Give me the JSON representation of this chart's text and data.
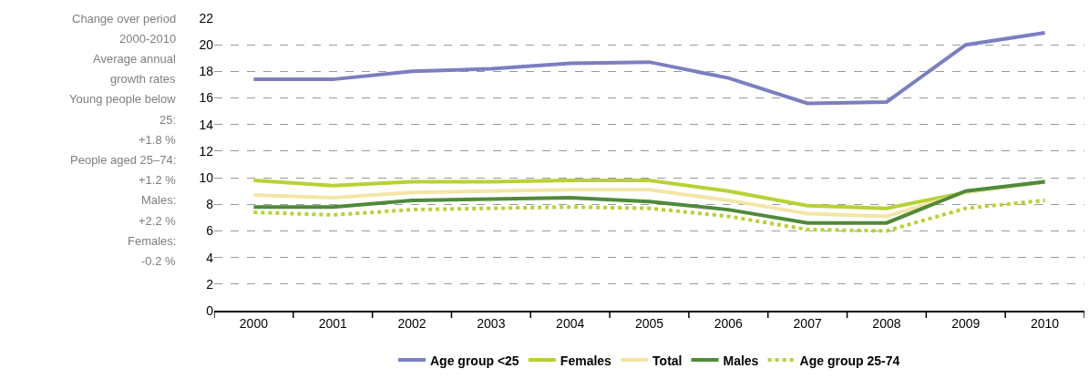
{
  "chart_data": {
    "type": "line",
    "categories": [
      "2000",
      "2001",
      "2002",
      "2003",
      "2004",
      "2005",
      "2006",
      "2007",
      "2008",
      "2009",
      "2010"
    ],
    "series": [
      {
        "name": "Age group <25",
        "color": "#7b7fc0",
        "values": [
          17.4,
          17.4,
          18.0,
          18.2,
          18.6,
          18.7,
          17.5,
          15.6,
          15.7,
          20.0,
          20.9
        ]
      },
      {
        "name": "Females",
        "color": "#b5d334",
        "values": [
          9.8,
          9.4,
          9.7,
          9.7,
          9.8,
          9.8,
          9.0,
          7.9,
          7.7,
          8.9,
          9.7
        ]
      },
      {
        "name": "Total",
        "color": "#f3e5a6",
        "values": [
          8.7,
          8.5,
          8.9,
          9.0,
          9.1,
          9.1,
          8.3,
          7.3,
          7.1,
          8.9,
          9.7
        ]
      },
      {
        "name": "Males",
        "color": "#4f8a3a",
        "values": [
          7.8,
          7.8,
          8.3,
          8.4,
          8.5,
          8.2,
          7.6,
          6.6,
          6.6,
          9.0,
          9.7
        ]
      },
      {
        "name": "Age group 25-74",
        "color": "#b5d334",
        "line_style": "dotted",
        "values": [
          7.4,
          7.2,
          7.6,
          7.7,
          7.8,
          7.7,
          7.1,
          6.1,
          6.0,
          7.7,
          8.3
        ]
      }
    ],
    "ylim": [
      0,
      22
    ],
    "yticks": [
      0,
      2,
      4,
      6,
      8,
      10,
      12,
      14,
      16,
      18,
      20,
      22
    ],
    "grid": "y",
    "legend": "bottom",
    "marker": "none",
    "line_style": "solid",
    "annotations": [
      "Change over period",
      "2000-2010",
      "Average annual",
      "growth rates",
      "Young people below",
      "25:",
      "+1.8 %",
      "People aged 25–74:",
      "+1.2 %",
      "Males:",
      "+2.2 %",
      "Females:",
      "-0.2 %"
    ]
  }
}
